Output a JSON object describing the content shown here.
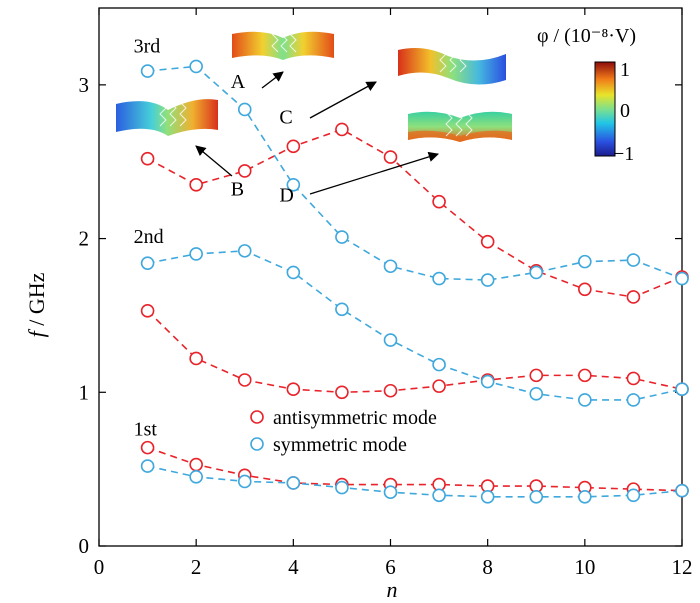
{
  "chart_data": {
    "type": "line",
    "xlabel_prefix": "f",
    "ylabel": "f / GHz",
    "xlabel": "n",
    "xlim": [
      0,
      12
    ],
    "ylim": [
      0,
      3.5
    ],
    "xticks": [
      "0",
      "2",
      "4",
      "6",
      "8",
      "10",
      "12"
    ],
    "yticks": [
      "0",
      "1",
      "2",
      "3"
    ],
    "grid": false,
    "legend_placement": "center-bottom",
    "series": [
      {
        "name": "antisymmetric mode",
        "color": "#e8232a",
        "style": "dashed",
        "marker": "open-circle",
        "branch": "1st",
        "x": [
          1,
          2,
          3,
          4,
          5,
          6,
          7,
          8,
          9,
          10,
          11,
          12
        ],
        "y": [
          0.64,
          0.53,
          0.46,
          0.41,
          0.4,
          0.4,
          0.4,
          0.39,
          0.39,
          0.38,
          0.37,
          0.36
        ]
      },
      {
        "name": "symmetric mode",
        "color": "#3fa8dd",
        "style": "dashed",
        "marker": "open-circle",
        "branch": "1st",
        "x": [
          1,
          2,
          3,
          4,
          5,
          6,
          7,
          8,
          9,
          10,
          11,
          12
        ],
        "y": [
          0.52,
          0.45,
          0.42,
          0.41,
          0.38,
          0.35,
          0.33,
          0.32,
          0.32,
          0.32,
          0.33,
          0.36
        ]
      },
      {
        "name": "antisymmetric mode",
        "color": "#e8232a",
        "style": "dashed",
        "marker": "open-circle",
        "branch": "2nd",
        "x": [
          1,
          2,
          3,
          4,
          5,
          6,
          7,
          8,
          9,
          10,
          11,
          12
        ],
        "y": [
          1.53,
          1.22,
          1.08,
          1.02,
          1.0,
          1.01,
          1.04,
          1.08,
          1.11,
          1.11,
          1.09,
          1.02
        ]
      },
      {
        "name": "symmetric mode",
        "color": "#3fa8dd",
        "style": "dashed",
        "marker": "open-circle",
        "branch": "2nd",
        "x": [
          1,
          2,
          3,
          4,
          5,
          6,
          7,
          8,
          9,
          10,
          11,
          12
        ],
        "y": [
          1.84,
          1.9,
          1.92,
          1.78,
          1.54,
          1.34,
          1.18,
          1.07,
          0.99,
          0.95,
          0.95,
          1.02
        ]
      },
      {
        "name": "antisymmetric mode",
        "color": "#e8232a",
        "style": "dashed",
        "marker": "open-circle",
        "branch": "3rd",
        "x": [
          1,
          2,
          3,
          4,
          5,
          6,
          7,
          8,
          9,
          10,
          11,
          12
        ],
        "y": [
          2.52,
          2.35,
          2.44,
          2.6,
          2.71,
          2.53,
          2.24,
          1.98,
          1.79,
          1.67,
          1.62,
          1.75
        ]
      },
      {
        "name": "symmetric mode",
        "color": "#3fa8dd",
        "style": "dashed",
        "marker": "open-circle",
        "branch": "3rd",
        "x": [
          1,
          2,
          3,
          4,
          5,
          6,
          7,
          8,
          9,
          10,
          11,
          12
        ],
        "y": [
          3.09,
          3.12,
          2.84,
          2.35,
          2.01,
          1.82,
          1.74,
          1.73,
          1.78,
          1.85,
          1.86,
          1.74
        ]
      }
    ],
    "branch_labels": [
      {
        "text": "1st",
        "x": 1.0,
        "y": 0.72
      },
      {
        "text": "2nd",
        "x": 1.0,
        "y": 1.97
      },
      {
        "text": "3rd",
        "x": 1.0,
        "y": 3.21
      }
    ],
    "point_labels": [
      {
        "text": "A",
        "x": 3.0,
        "y": 2.98
      },
      {
        "text": "B",
        "x": 3.0,
        "y": 2.28
      },
      {
        "text": "C",
        "x": 4.0,
        "y": 2.75
      },
      {
        "text": "D",
        "x": 4.0,
        "y": 2.24
      }
    ],
    "legend": [
      "antisymmetric mode",
      "symmetric mode"
    ],
    "colorbar": {
      "title": "φ / (10⁻⁸·V)",
      "ticks": [
        "1",
        "0",
        "−1"
      ],
      "range": [
        -1,
        1
      ]
    }
  }
}
